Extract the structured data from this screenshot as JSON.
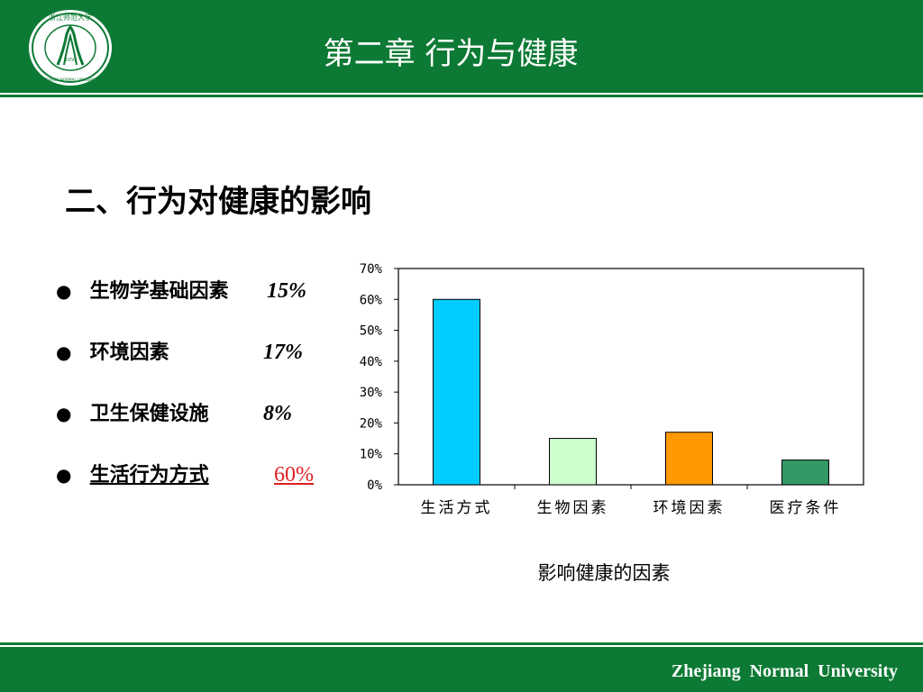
{
  "header": {
    "logo_text": "浙江师范大学",
    "logo_year": "1956",
    "logo_en": "ZHEJIANG NORMAL UNIVERSITY",
    "title": "第二章  行为与健康"
  },
  "section": {
    "heading": "二、行为对健康的影响"
  },
  "factors": [
    {
      "bullet": "●",
      "label": "生物学基础因素",
      "pct": "15%"
    },
    {
      "bullet": "●",
      "label": "环境因素",
      "pct": "17%"
    },
    {
      "bullet": "●",
      "label": "卫生保健设施",
      "pct": "8%"
    },
    {
      "bullet": "●",
      "label": "生活行为方式",
      "pct": "60%"
    }
  ],
  "footer": {
    "text": "Zhejiang  Normal  University"
  },
  "colors": {
    "brand_green": "#0c7a34",
    "highlight_red": "#e02020"
  },
  "chart_data": {
    "type": "bar",
    "categories": [
      "生活方式",
      "生物因素",
      "环境因素",
      "医疗条件"
    ],
    "values": [
      60,
      15,
      17,
      8
    ],
    "colors": [
      "#00ccff",
      "#ccffcc",
      "#ff9900",
      "#339966"
    ],
    "title": "",
    "xlabel": "影响健康的因素",
    "ylabel": "",
    "ylim": [
      0,
      70
    ],
    "yticks": [
      "0%",
      "10%",
      "20%",
      "30%",
      "40%",
      "50%",
      "60%",
      "70%"
    ],
    "grid": false,
    "legend": "none"
  }
}
